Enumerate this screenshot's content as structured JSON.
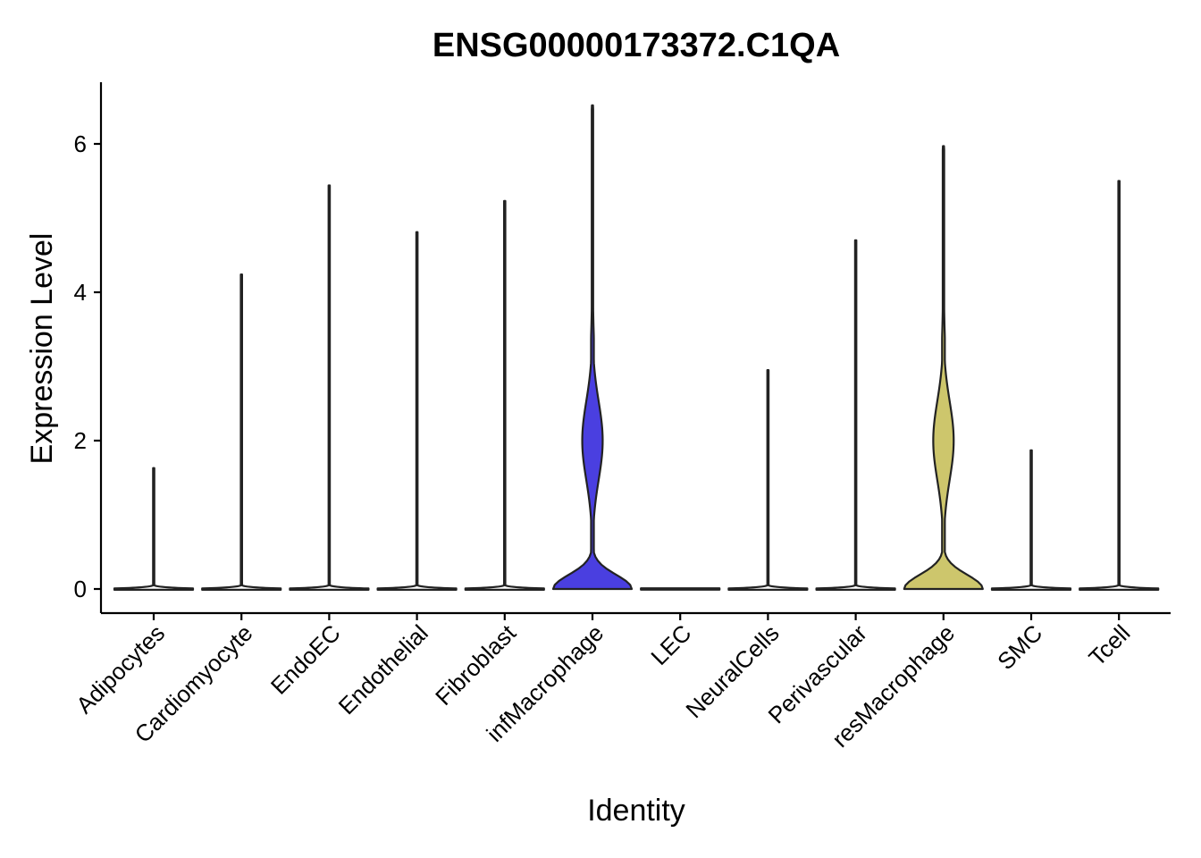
{
  "chart_data": {
    "type": "violin",
    "title": "ENSG00000173372.C1QA",
    "xlabel": "Identity",
    "ylabel": "Expression Level",
    "ylim": [
      -0.35,
      6.85
    ],
    "yticks": [
      0,
      2,
      4,
      6
    ],
    "grid": false,
    "legend": "none",
    "categories": [
      "Adipocytes",
      "Cardiomyocyte",
      "EndoEC",
      "Endothelial",
      "Fibroblast",
      "infMacrophage",
      "LEC",
      "NeuralCells",
      "Perivascular",
      "resMacrophage",
      "SMC",
      "Tcell"
    ],
    "max_values": [
      1.63,
      4.24,
      5.44,
      4.81,
      5.23,
      6.52,
      0.0,
      2.95,
      4.7,
      5.97,
      1.87,
      5.5
    ],
    "fill_colors": [
      "#ffffff",
      "#ffffff",
      "#ffffff",
      "#ffffff",
      "#ffffff",
      "#4a3fe0",
      "#ffffff",
      "#ffffff",
      "#ffffff",
      "#cdc66c",
      "#ffffff",
      "#ffffff"
    ],
    "distribution": {
      "infMacrophage": {
        "zero_peak": 0.0,
        "upper_mode": 2.0,
        "shape": "bimodal"
      },
      "resMacrophage": {
        "zero_peak": 0.0,
        "upper_mode": 2.0,
        "shape": "bimodal"
      }
    }
  }
}
